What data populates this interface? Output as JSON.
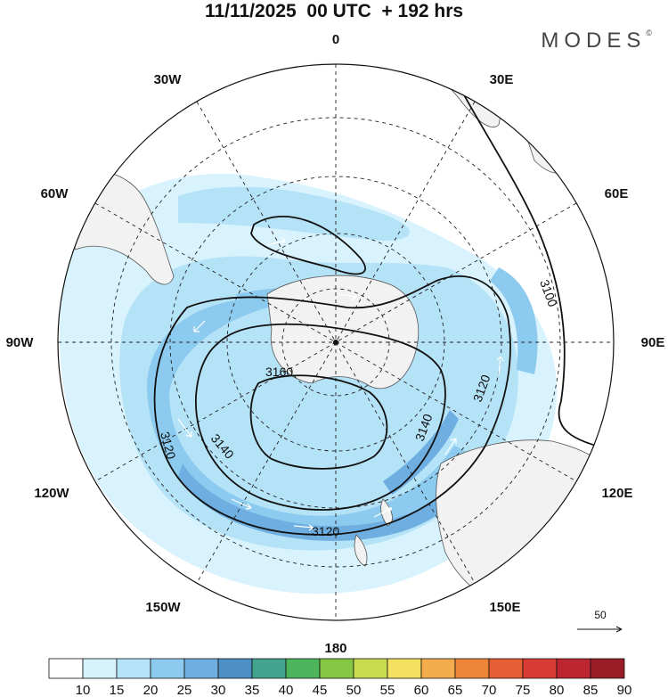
{
  "header": {
    "title": "11/11/2025  00 UTC  + 192 hrs",
    "brand": "MODES",
    "brand_mark": "©"
  },
  "map": {
    "projection": "south-polar-stereographic",
    "longitude_labels": [
      "0",
      "30E",
      "60E",
      "90E",
      "120E",
      "150E",
      "180",
      "150W",
      "120W",
      "90W",
      "60W",
      "30W"
    ],
    "contour_labels": [
      "3100",
      "3120",
      "3120",
      "3120",
      "3140",
      "3140",
      "3160"
    ],
    "vector_reference": {
      "label": "50"
    }
  },
  "colorbar": {
    "ticks": [
      "10",
      "15",
      "20",
      "25",
      "30",
      "35",
      "40",
      "45",
      "50",
      "55",
      "60",
      "65",
      "70",
      "75",
      "80",
      "85",
      "90"
    ],
    "colors": [
      "#ffffff",
      "#d6f2fd",
      "#b4e2f7",
      "#8ccbef",
      "#6eaee0",
      "#4b8fc4",
      "#44a38f",
      "#4cb45a",
      "#86c645",
      "#c9dc4f",
      "#f5e160",
      "#f4ac4c",
      "#ef8637",
      "#e65e34",
      "#d83b33",
      "#bd2531",
      "#991c27"
    ]
  }
}
